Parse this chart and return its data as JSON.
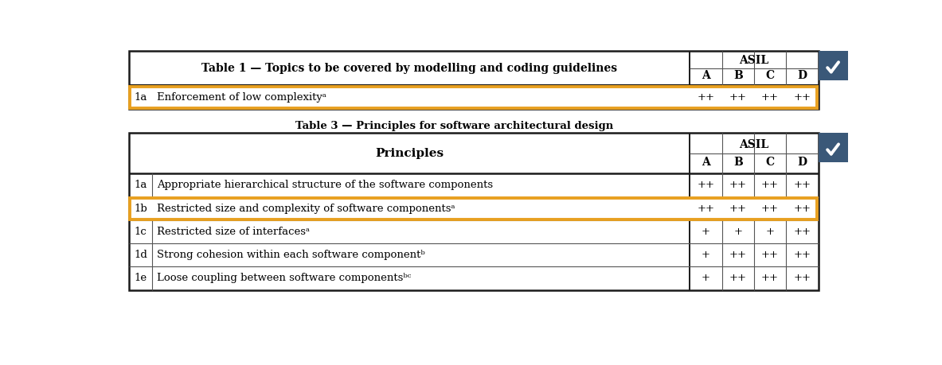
{
  "bg_color": "#ffffff",
  "border_color": "#1a1a1a",
  "thin_line_color": "#555555",
  "highlight_color": "#E8A020",
  "badge_color": "#3a5878",
  "asil_header": "ASIL",
  "asil_cols": [
    "A",
    "B",
    "C",
    "D"
  ],
  "table1_title": "Table 1 — Topics to be covered by modelling and coding guidelines",
  "table1_rows": [
    {
      "id": "1a",
      "principle": "Enforcement of low complexityᵃ",
      "A": "++",
      "B": "++",
      "C": "++",
      "D": "++",
      "highlight": true
    }
  ],
  "table3_caption": "Table 3 — Principles for software architectural design",
  "table3_header": "Principles",
  "table3_rows": [
    {
      "id": "1a",
      "principle": "Appropriate hierarchical structure of the software components",
      "A": "++",
      "B": "++",
      "C": "++",
      "D": "++",
      "highlight": false
    },
    {
      "id": "1b",
      "principle": "Restricted size and complexity of software componentsᵃ",
      "A": "++",
      "B": "++",
      "C": "++",
      "D": "++",
      "highlight": true
    },
    {
      "id": "1c",
      "principle": "Restricted size of interfacesᵃ",
      "A": "+",
      "B": "+",
      "C": "+",
      "D": "++",
      "highlight": false
    },
    {
      "id": "1d",
      "principle": "Strong cohesion within each software componentᵇ",
      "A": "+",
      "B": "++",
      "C": "++",
      "D": "++",
      "highlight": false
    },
    {
      "id": "1e",
      "principle": "Loose coupling between software componentsᵇᶜ",
      "A": "+",
      "B": "++",
      "C": "++",
      "D": "++",
      "highlight": false
    }
  ]
}
